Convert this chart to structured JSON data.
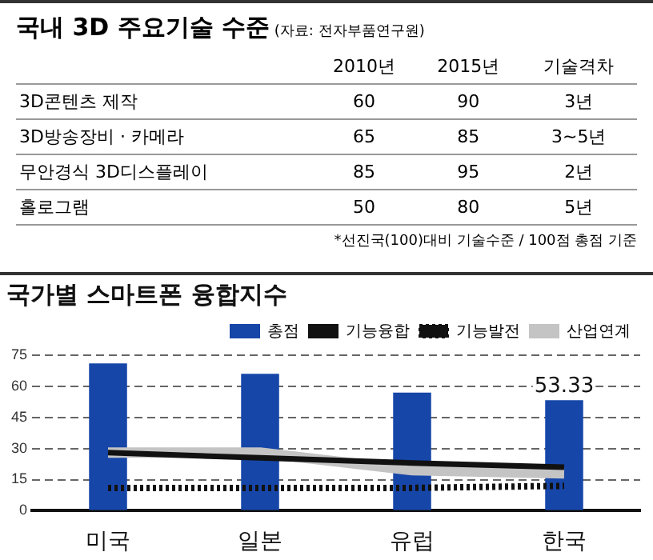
{
  "chart_data": [
    {
      "type": "other",
      "title": "국내 3D 주요기술 수준",
      "subtitle": "(자료: 전자부품연구원)",
      "categories": [
        "3D콘텐츠 제작",
        "3D방송장비 · 카메라",
        "무안경식 3D디스플레이",
        "홀로그램"
      ],
      "series": [
        {
          "name": "2010년",
          "values": [
            60,
            65,
            85,
            50
          ]
        },
        {
          "name": "2015년",
          "values": [
            90,
            85,
            95,
            80
          ]
        },
        {
          "name": "기술격차",
          "values": [
            null,
            null,
            null,
            null
          ],
          "value_labels": [
            "3년",
            "3~5년",
            "2년",
            "5년"
          ]
        }
      ],
      "annotations": [
        "*선진국(100)대비 기술수준 / 100점 총점 기준"
      ],
      "data_labels": true
    },
    {
      "type": "bar",
      "title": "국가별 스마트폰 융합지수",
      "categories": [
        "미국",
        "일본",
        "유럽",
        "한국"
      ],
      "ylim": [
        0,
        75
      ],
      "yticks": [
        0,
        15,
        30,
        45,
        60,
        75
      ],
      "grid": "y",
      "legend": "top right",
      "series": [
        {
          "name": "총점",
          "type": "bar",
          "color": "#1646a8",
          "values": [
            71,
            66,
            57,
            53.33
          ],
          "value_labels": [
            null,
            null,
            null,
            "53.33"
          ]
        },
        {
          "name": "기능융합",
          "type": "line",
          "color": "#111111",
          "line_style": "solid",
          "values": [
            28,
            25.5,
            23,
            21
          ]
        },
        {
          "name": "기능발전",
          "type": "line",
          "color": "#111111",
          "line_style": "dotted",
          "values": [
            11,
            11,
            11,
            12
          ]
        },
        {
          "name": "산업연계",
          "type": "line",
          "color": "#c4c4c4",
          "line_style": "solid",
          "values": [
            28,
            28,
            19.5,
            18
          ]
        }
      ]
    }
  ]
}
